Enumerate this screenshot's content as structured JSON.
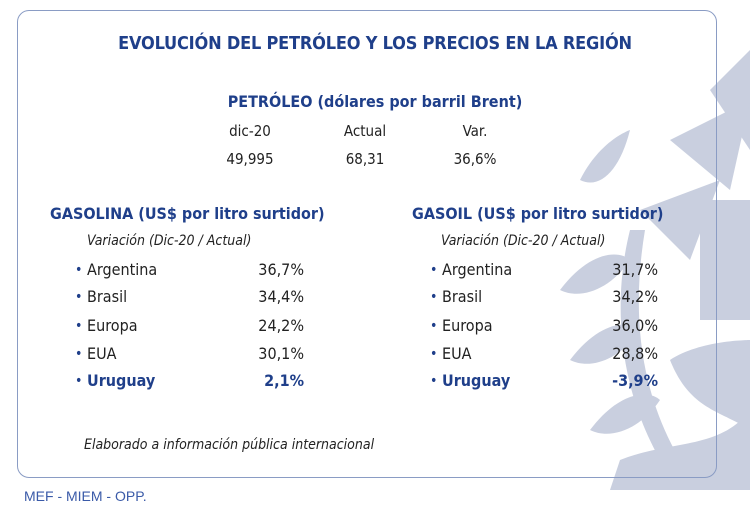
{
  "title": "EVOLUCIÓN DEL PETRÓLEO Y LOS PRECIOS EN LA REGIÓN",
  "petroleo": {
    "heading": "PETRÓLEO (dólares por barril Brent)",
    "headers": [
      "dic-20",
      "Actual",
      "Var."
    ],
    "values": [
      "49,995",
      "68,31",
      "36,6%"
    ]
  },
  "gasolina": {
    "heading": "GASOLINA (US$ por litro surtidor)",
    "subheading": "Variación (Dic-20 / Actual)",
    "rows": [
      {
        "label": "Argentina",
        "value": "36,7%"
      },
      {
        "label": "Brasil",
        "value": "34,4%"
      },
      {
        "label": "Europa",
        "value": "24,2%"
      },
      {
        "label": "EUA",
        "value": "30,1%"
      },
      {
        "label": "Uruguay",
        "value": "2,1%"
      }
    ]
  },
  "gasoil": {
    "heading": "GASOIL (US$ por litro surtidor)",
    "subheading": "Variación (Dic-20 / Actual)",
    "rows": [
      {
        "label": "Argentina",
        "value": "31,7%"
      },
      {
        "label": "Brasil",
        "value": "34,2%"
      },
      {
        "label": "Europa",
        "value": "36,0%"
      },
      {
        "label": "EUA",
        "value": "28,8%"
      },
      {
        "label": "Uruguay",
        "value": "-3,9%"
      }
    ]
  },
  "note": "Elaborado a información pública internacional",
  "footer": "MEF - MIEM - OPP.",
  "colors": {
    "accent": "#1f3f8a",
    "watermark": "#c9cfdf",
    "border": "#8a9cc4"
  }
}
